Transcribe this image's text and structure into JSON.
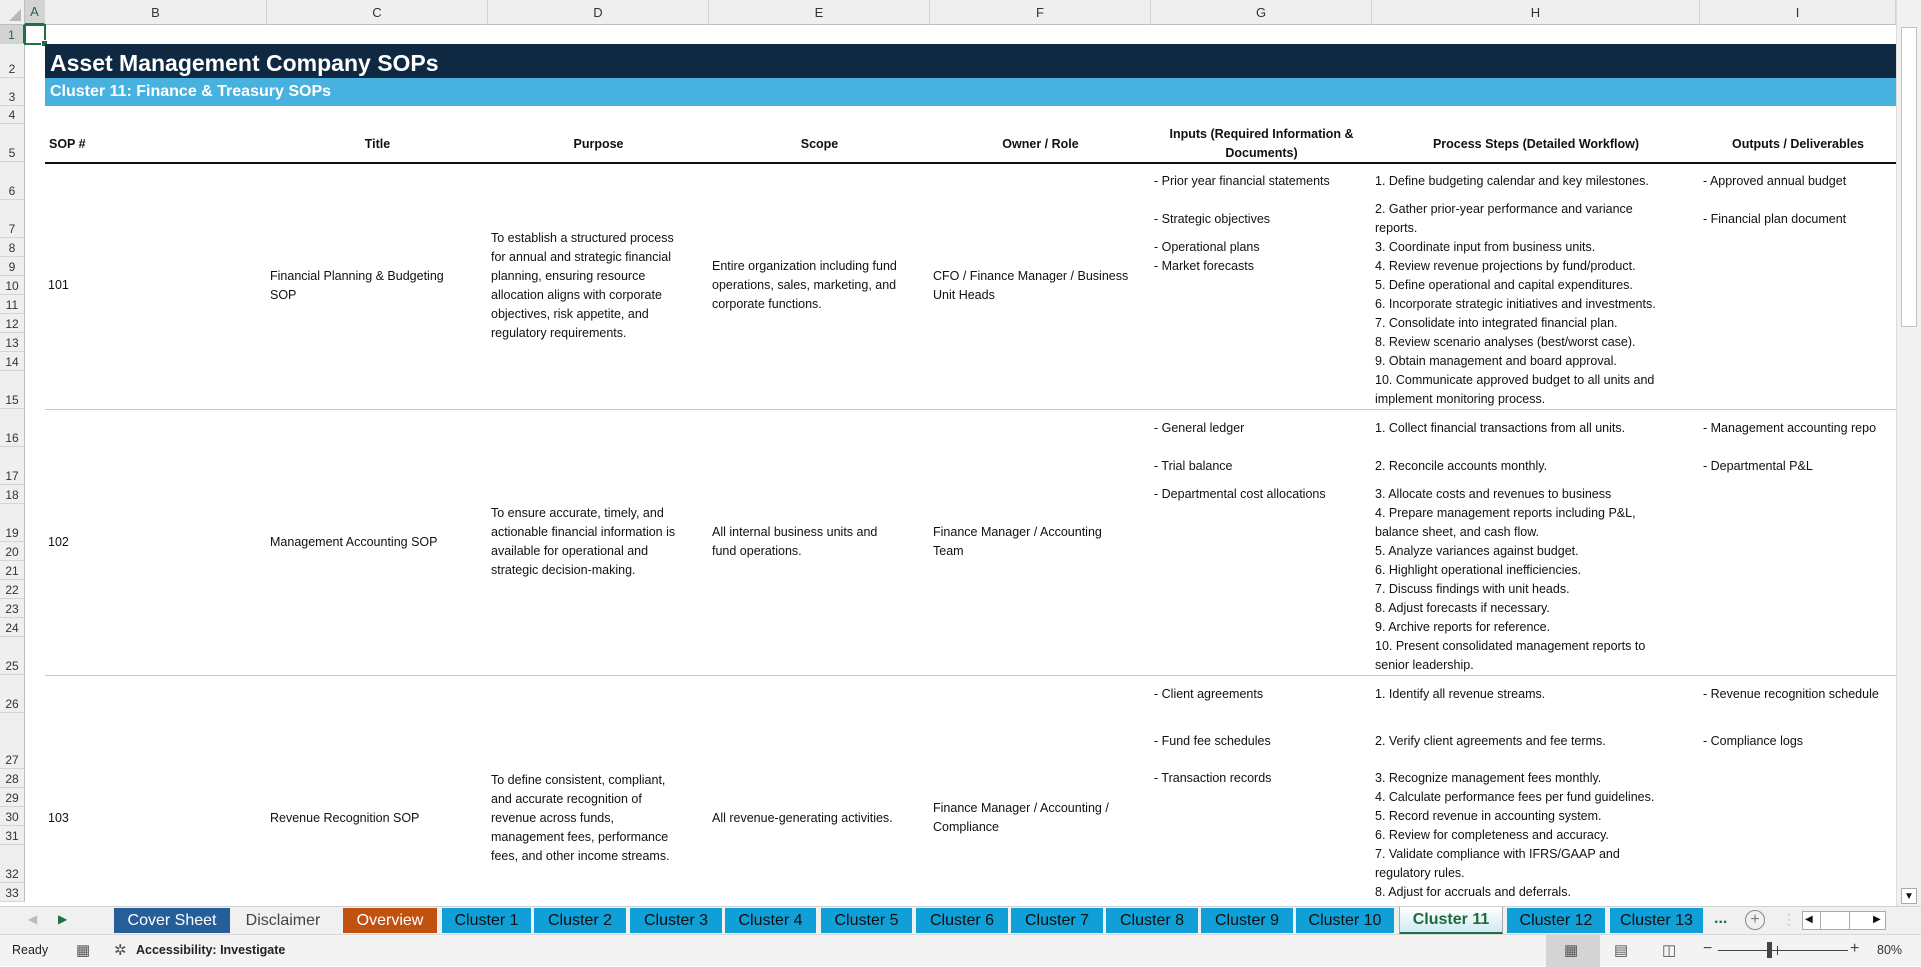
{
  "columns": [
    "A",
    "B",
    "C",
    "D",
    "E",
    "F",
    "G",
    "H",
    "I"
  ],
  "row_headers": [
    "1",
    "2",
    "3",
    "4",
    "5",
    "6",
    "7",
    "8",
    "9",
    "10",
    "11",
    "12",
    "13",
    "14",
    "15",
    "16",
    "17",
    "18",
    "19",
    "20",
    "21",
    "22",
    "23",
    "24",
    "25",
    "26",
    "27",
    "28",
    "29",
    "30",
    "31",
    "32",
    "33"
  ],
  "selected_cell": "A1",
  "title": "Asset Management Company SOPs",
  "subtitle": "Cluster 11: Finance & Treasury SOPs",
  "colors": {
    "title_band": "#0f2943",
    "subtitle_band": "#47b1e0",
    "cover_tab": "#255e99",
    "overview_tab": "#c0510f",
    "cluster_tab": "#109fd6",
    "active_green": "#1e7145"
  },
  "headers": {
    "sop": [
      "SOP #"
    ],
    "title": [
      "Title"
    ],
    "purpose": [
      "Purpose"
    ],
    "scope": [
      "Scope"
    ],
    "owner": [
      "Owner / Role"
    ],
    "inputs": [
      "Inputs (Required Information &",
      "Documents)"
    ],
    "steps": [
      "Process Steps (Detailed Workflow)"
    ],
    "outputs": [
      "Outputs / Deliverables"
    ]
  },
  "sops": [
    {
      "num": "101",
      "title": [
        "Financial Planning & Budgeting",
        "SOP"
      ],
      "purpose": [
        "To establish a structured process",
        "for annual and strategic financial",
        "planning, ensuring resource",
        "allocation aligns with corporate",
        "objectives, risk appetite, and",
        "regulatory requirements."
      ],
      "scope": [
        "Entire organization including fund",
        "operations, sales, marketing, and",
        "corporate functions."
      ],
      "owner": [
        "CFO / Finance Manager / Business",
        "Unit Heads"
      ],
      "rows": [
        {
          "input": "- Prior year financial statements",
          "steps": [
            "1. Define budgeting calendar and key milestones."
          ],
          "output": "- Approved annual budget"
        },
        {
          "input": "- Strategic objectives",
          "steps": [
            "2. Gather prior-year performance and variance",
            "reports."
          ],
          "output": "- Financial plan document"
        },
        {
          "input": "- Operational plans",
          "steps": [
            "3. Coordinate input from business units."
          ],
          "output": ""
        },
        {
          "input": "- Market forecasts",
          "steps": [
            "4. Review revenue projections by fund/product."
          ],
          "output": ""
        },
        {
          "input": "",
          "steps": [
            "5. Define operational and capital expenditures."
          ],
          "output": ""
        },
        {
          "input": "",
          "steps": [
            "6. Incorporate strategic initiatives and investments."
          ],
          "output": ""
        },
        {
          "input": "",
          "steps": [
            "7. Consolidate into integrated financial plan."
          ],
          "output": ""
        },
        {
          "input": "",
          "steps": [
            "8. Review scenario analyses (best/worst case)."
          ],
          "output": ""
        },
        {
          "input": "",
          "steps": [
            "9. Obtain management and board approval."
          ],
          "output": ""
        },
        {
          "input": "",
          "steps": [
            "10. Communicate approved budget to all units and",
            "implement monitoring process."
          ],
          "output": ""
        }
      ]
    },
    {
      "num": "102",
      "title": [
        "Management Accounting SOP"
      ],
      "purpose": [
        "To ensure accurate, timely, and",
        "actionable financial information is",
        "available for operational and",
        "strategic decision-making."
      ],
      "scope": [
        "All internal business units and",
        "fund operations."
      ],
      "owner": [
        "Finance Manager / Accounting",
        "Team"
      ],
      "rows": [
        {
          "input": "- General ledger",
          "steps": [
            "1. Collect financial transactions from all units."
          ],
          "output": "- Management accounting repo"
        },
        {
          "input": "- Trial balance",
          "steps": [
            "2. Reconcile accounts monthly."
          ],
          "output": "- Departmental P&L"
        },
        {
          "input": "- Departmental cost allocations",
          "steps": [
            "3. Allocate costs and revenues to business"
          ],
          "output": ""
        },
        {
          "input": "",
          "steps": [
            "4. Prepare management reports including P&L,",
            "balance sheet, and cash flow."
          ],
          "output": ""
        },
        {
          "input": "",
          "steps": [
            "5. Analyze variances against budget."
          ],
          "output": ""
        },
        {
          "input": "",
          "steps": [
            "6. Highlight operational inefficiencies."
          ],
          "output": ""
        },
        {
          "input": "",
          "steps": [
            "7. Discuss findings with unit heads."
          ],
          "output": ""
        },
        {
          "input": "",
          "steps": [
            "8. Adjust forecasts if necessary."
          ],
          "output": ""
        },
        {
          "input": "",
          "steps": [
            "9. Archive reports for reference."
          ],
          "output": ""
        },
        {
          "input": "",
          "steps": [
            "10. Present consolidated management reports to",
            "senior leadership."
          ],
          "output": ""
        }
      ]
    },
    {
      "num": "103",
      "title": [
        "Revenue Recognition SOP"
      ],
      "purpose": [
        "To define consistent, compliant,",
        "and accurate recognition of",
        "revenue across funds,",
        "management fees, performance",
        "fees, and other income streams."
      ],
      "scope": [
        "All revenue-generating activities."
      ],
      "owner": [
        "Finance Manager / Accounting /",
        "Compliance"
      ],
      "rows": [
        {
          "input": "- Client agreements",
          "steps": [
            "1. Identify all revenue streams."
          ],
          "output": "- Revenue recognition schedule"
        },
        {
          "input": "- Fund fee schedules",
          "steps": [
            "2. Verify client agreements and fee terms."
          ],
          "output": "- Compliance logs"
        },
        {
          "input": "- Transaction records",
          "steps": [
            "3. Recognize management fees monthly."
          ],
          "output": ""
        },
        {
          "input": "",
          "steps": [
            "4. Calculate performance fees per fund guidelines."
          ],
          "output": ""
        },
        {
          "input": "",
          "steps": [
            "5. Record revenue in accounting system."
          ],
          "output": ""
        },
        {
          "input": "",
          "steps": [
            "6. Review for completeness and accuracy."
          ],
          "output": ""
        },
        {
          "input": "",
          "steps": [
            "7. Validate compliance with IFRS/GAAP and",
            "regulatory rules."
          ],
          "output": ""
        },
        {
          "input": "",
          "steps": [
            "8. Adjust for accruals and deferrals."
          ],
          "output": ""
        }
      ]
    }
  ],
  "tabs": [
    {
      "label": "Cover Sheet",
      "style": "cover"
    },
    {
      "label": "Disclaimer",
      "style": "plain"
    },
    {
      "label": "Overview",
      "style": "overview"
    },
    {
      "label": "Cluster 1",
      "style": "cluster"
    },
    {
      "label": "Cluster 2",
      "style": "cluster"
    },
    {
      "label": "Cluster 3",
      "style": "cluster"
    },
    {
      "label": "Cluster 4",
      "style": "cluster"
    },
    {
      "label": "Cluster 5",
      "style": "cluster"
    },
    {
      "label": "Cluster 6",
      "style": "cluster"
    },
    {
      "label": "Cluster 7",
      "style": "cluster"
    },
    {
      "label": "Cluster 8",
      "style": "cluster"
    },
    {
      "label": "Cluster 9",
      "style": "cluster"
    },
    {
      "label": "Cluster 10",
      "style": "cluster"
    },
    {
      "label": "Cluster 11",
      "style": "active"
    },
    {
      "label": "Cluster 12",
      "style": "cluster"
    },
    {
      "label": "Cluster 13",
      "style": "cluster"
    }
  ],
  "tab_overflow": "...",
  "status": {
    "ready": "Ready",
    "accessibility": "Accessibility: Investigate",
    "zoom": "80%",
    "zoom_level_percent": 80
  }
}
